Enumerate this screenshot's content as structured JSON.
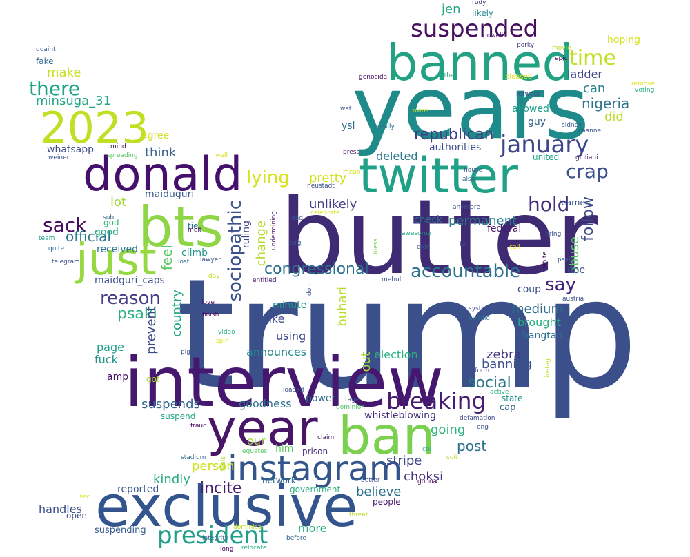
{
  "words": [
    {
      "text": "trump",
      "color": "#3b4f8a"
    },
    {
      "text": "butter",
      "color": "#3e2b73"
    },
    {
      "text": "years",
      "color": "#1f8a8a"
    },
    {
      "text": "interview",
      "color": "#45176e"
    },
    {
      "text": "exclusive",
      "color": "#33548c"
    },
    {
      "text": "banned",
      "color": "#23a183"
    },
    {
      "text": "twitter",
      "color": "#1fa188"
    },
    {
      "text": "donald",
      "color": "#45106c"
    },
    {
      "text": "bts",
      "color": "#8ed645"
    },
    {
      "text": "just",
      "color": "#95d840"
    },
    {
      "text": "ban",
      "color": "#7bd04f"
    },
    {
      "text": "year",
      "color": "#481567"
    },
    {
      "text": "instagram",
      "color": "#33558c"
    },
    {
      "text": "2023",
      "color": "#c0df25"
    },
    {
      "text": "suspended",
      "color": "#46105f"
    },
    {
      "text": "january",
      "color": "#3f4788"
    },
    {
      "text": "president",
      "color": "#1f9e89"
    },
    {
      "text": "breaking",
      "color": "#481d6f"
    },
    {
      "text": "accountable",
      "color": "#2c718e"
    },
    {
      "text": "sociopathic",
      "color": "#3b528b"
    },
    {
      "text": "time",
      "color": "#c2df23"
    },
    {
      "text": "crap",
      "color": "#3b528b"
    },
    {
      "text": "hold",
      "color": "#46307e"
    },
    {
      "text": "say",
      "color": "#45207a"
    },
    {
      "text": "reason",
      "color": "#433e85"
    },
    {
      "text": "sack",
      "color": "#470d60"
    },
    {
      "text": "congressional",
      "color": "#2d708e"
    },
    {
      "text": "republican",
      "color": "#433e85"
    },
    {
      "text": "lying",
      "color": "#d8e219"
    },
    {
      "text": "there",
      "color": "#20a486"
    },
    {
      "text": "follow",
      "color": "#3e4989"
    },
    {
      "text": "official",
      "color": "#2a788e"
    },
    {
      "text": "nigeria",
      "color": "#2c728e"
    },
    {
      "text": "psaki",
      "color": "#29af7f"
    },
    {
      "text": "social",
      "color": "#2a778e"
    },
    {
      "text": "post",
      "color": "#2d708e"
    },
    {
      "text": "minsuga_31",
      "color": "#23a884"
    },
    {
      "text": "make",
      "color": "#c8e020"
    },
    {
      "text": "pretty",
      "color": "#d2e21b"
    },
    {
      "text": "feel",
      "color": "#5ac864"
    },
    {
      "text": "change",
      "color": "#b2dd2d"
    },
    {
      "text": "jen",
      "color": "#22a785"
    },
    {
      "text": "suspends",
      "color": "#31668e"
    },
    {
      "text": "medium",
      "color": "#2e6d8e"
    },
    {
      "text": "permanent",
      "color": "#287d8e"
    },
    {
      "text": "unlikely",
      "color": "#424186"
    },
    {
      "text": "incite",
      "color": "#481f70"
    },
    {
      "text": "believe",
      "color": "#2c718e"
    },
    {
      "text": "stripe",
      "color": "#3f4889"
    },
    {
      "text": "chokşi",
      "color": "#46337f"
    },
    {
      "text": "zebra",
      "color": "#453581"
    },
    {
      "text": "banning",
      "color": "#3b528b"
    },
    {
      "text": "going",
      "color": "#2fb47c"
    },
    {
      "text": "can",
      "color": "#26818e"
    },
    {
      "text": "did",
      "color": "#bade28"
    },
    {
      "text": "abuse",
      "color": "#56c667"
    },
    {
      "text": "out",
      "color": "#a5db36"
    },
    {
      "text": "buhari",
      "color": "#b5de2b"
    },
    {
      "text": "lot",
      "color": "#a0da39"
    },
    {
      "text": "like",
      "color": "#3f4788"
    },
    {
      "text": "think",
      "color": "#34618d"
    },
    {
      "text": "country",
      "color": "#22a884"
    },
    {
      "text": "person",
      "color": "#cde11d"
    },
    {
      "text": "kindly",
      "color": "#26ad81"
    },
    {
      "text": "our",
      "color": "#9fda3a"
    },
    {
      "text": "more",
      "color": "#2ab07f"
    },
    {
      "text": "handles",
      "color": "#3d4e8a"
    },
    {
      "text": "reported",
      "color": "#39568c"
    },
    {
      "text": "prevent",
      "color": "#3e4989"
    },
    {
      "text": "ruling",
      "color": "#3f4788"
    },
    {
      "text": "announces",
      "color": "#23898e"
    },
    {
      "text": "election",
      "color": "#2ab07f"
    },
    {
      "text": "deleted",
      "color": "#2a788e"
    },
    {
      "text": "using",
      "color": "#3e4989"
    },
    {
      "text": "goodness",
      "color": "#2c728e"
    },
    {
      "text": "power",
      "color": "#2f6c8e"
    },
    {
      "text": "whistleblowing",
      "color": "#46307e"
    },
    {
      "text": "ladder",
      "color": "#404588"
    },
    {
      "text": "climb",
      "color": "#20928c"
    },
    {
      "text": "maiduguri",
      "color": "#38598c"
    },
    {
      "text": "maidguri_caps",
      "color": "#3b528b"
    },
    {
      "text": "page",
      "color": "#1fa088"
    },
    {
      "text": "fuck",
      "color": "#21918c"
    },
    {
      "text": "amp",
      "color": "#471164"
    },
    {
      "text": "whatsapp",
      "color": "#3d4e8a"
    },
    {
      "text": "agree",
      "color": "#d0e11c"
    },
    {
      "text": "received",
      "color": "#2c738e"
    },
    {
      "text": "minute",
      "color": "#1f968b"
    },
    {
      "text": "doe",
      "color": "#3a548c"
    },
    {
      "text": "coup",
      "color": "#3c508b"
    },
    {
      "text": "brought",
      "color": "#27ad81"
    },
    {
      "text": "bangtan",
      "color": "#2d708e"
    },
    {
      "text": "check",
      "color": "#306a8e"
    },
    {
      "text": "federal",
      "color": "#481c6e"
    },
    {
      "text": "authorities",
      "color": "#3c4f8a"
    },
    {
      "text": "guy",
      "color": "#34618d"
    },
    {
      "text": "allowed",
      "color": "#1f9f88"
    },
    {
      "text": "ysl",
      "color": "#2d718e"
    },
    {
      "text": "learned",
      "color": "#3b528b"
    },
    {
      "text": "united",
      "color": "#22a785"
    },
    {
      "text": "likely",
      "color": "#24868e"
    },
    {
      "text": "suspend",
      "color": "#22a785"
    },
    {
      "text": "suspending",
      "color": "#375a8c"
    },
    {
      "text": "state",
      "color": "#21918c"
    },
    {
      "text": "cap",
      "color": "#32658e"
    },
    {
      "text": "him",
      "color": "#5ec962"
    },
    {
      "text": "prison",
      "color": "#472c7a"
    },
    {
      "text": "government",
      "color": "#29af7f"
    },
    {
      "text": "network",
      "color": "#31688e"
    },
    {
      "text": "people",
      "color": "#481a6c"
    },
    {
      "text": "open",
      "color": "#3c4f8a"
    },
    {
      "text": "tie",
      "color": "#2e6f8e"
    },
    {
      "text": "god",
      "color": "#2fb47c"
    },
    {
      "text": "good",
      "color": "#27ad81"
    },
    {
      "text": "fake",
      "color": "#31678e"
    },
    {
      "text": "hoping",
      "color": "#d5e21a"
    },
    {
      "text": "rudy",
      "color": "#482475"
    },
    {
      "text": "powell",
      "color": "#482878"
    },
    {
      "text": "porky",
      "color": "#46327e"
    },
    {
      "text": "epic",
      "color": "#440154"
    },
    {
      "text": "movie",
      "color": "#b8de29"
    },
    {
      "text": "quaint",
      "color": "#39568c"
    },
    {
      "text": "genocidal",
      "color": "#46085c"
    },
    {
      "text": "father",
      "color": "#23a983"
    },
    {
      "text": "pleased",
      "color": "#dde318"
    },
    {
      "text": "remove",
      "color": "#dde318"
    },
    {
      "text": "voting",
      "color": "#2ab07f"
    },
    {
      "text": "retweet",
      "color": "#3e4a89"
    },
    {
      "text": "wat",
      "color": "#3b528b"
    },
    {
      "text": "owns",
      "color": "#c7e020"
    },
    {
      "text": "really",
      "color": "#2d718e"
    },
    {
      "text": "sidney",
      "color": "#38598c"
    },
    {
      "text": "channel",
      "color": "#3b528b"
    },
    {
      "text": "giuliani",
      "color": "#481b6d"
    },
    {
      "text": "mind",
      "color": "#440154"
    },
    {
      "text": "spreading",
      "color": "#5ac864"
    },
    {
      "text": "weiner",
      "color": "#3b528b"
    },
    {
      "text": "well",
      "color": "#d8e219"
    },
    {
      "text": "press",
      "color": "#481467"
    },
    {
      "text": "house",
      "color": "#3b528b"
    },
    {
      "text": "also",
      "color": "#31668e"
    },
    {
      "text": "mean",
      "color": "#cde11d"
    },
    {
      "text": "neustadt",
      "color": "#3b528b"
    },
    {
      "text": "dad",
      "color": "#3b528b"
    },
    {
      "text": "celebrate",
      "color": "#dde318"
    },
    {
      "text": "anymore",
      "color": "#3b528b"
    },
    {
      "text": "sub",
      "color": "#33638d"
    },
    {
      "text": "melt",
      "color": "#481769"
    },
    {
      "text": "team",
      "color": "#1fa088"
    },
    {
      "text": "quite",
      "color": "#33638d"
    },
    {
      "text": "telegram",
      "color": "#3b528b"
    },
    {
      "text": "lawyer",
      "color": "#3e4c8a"
    },
    {
      "text": "lost",
      "color": "#2c728e"
    },
    {
      "text": "undermining",
      "color": "#481769"
    },
    {
      "text": "isrg",
      "color": "#3b528b"
    },
    {
      "text": "bless",
      "color": "#7ad151"
    },
    {
      "text": "awesome",
      "color": "#22a785"
    },
    {
      "text": "didn",
      "color": "#39568c"
    },
    {
      "text": "fal",
      "color": "#3b528b"
    },
    {
      "text": "call",
      "color": "#fde725"
    },
    {
      "text": "bring",
      "color": "#3b528b"
    },
    {
      "text": "white",
      "color": "#440154"
    },
    {
      "text": "psak",
      "color": "#3b528b"
    },
    {
      "text": "day",
      "color": "#c2df23"
    },
    {
      "text": "entitled",
      "color": "#481668"
    },
    {
      "text": "mehul",
      "color": "#3b528b"
    },
    {
      "text": "austria",
      "color": "#3b528b"
    },
    {
      "text": "don",
      "color": "#3b528b"
    },
    {
      "text": "lie",
      "color": "#3b528b"
    },
    {
      "text": "system",
      "color": "#3b528b"
    },
    {
      "text": "bundle",
      "color": "#2e6e8e"
    },
    {
      "text": "love",
      "color": "#470e61"
    },
    {
      "text": "finish",
      "color": "#440154"
    },
    {
      "text": "video",
      "color": "#2ab07f"
    },
    {
      "text": "spin",
      "color": "#dde318"
    },
    {
      "text": "piggin",
      "color": "#3b528b"
    },
    {
      "text": "got",
      "color": "#addc30"
    },
    {
      "text": "instag",
      "color": "#c2df23"
    },
    {
      "text": "inform",
      "color": "#3b528b"
    },
    {
      "text": "active",
      "color": "#2ab07f"
    },
    {
      "text": "loaded",
      "color": "#3b528b"
    },
    {
      "text": "rage",
      "color": "#3b528b"
    },
    {
      "text": "dominion",
      "color": "#4ec36b"
    },
    {
      "text": "defamation",
      "color": "#3e4a89"
    },
    {
      "text": "eng",
      "color": "#3b528b"
    },
    {
      "text": "fraud",
      "color": "#440154"
    },
    {
      "text": "claim",
      "color": "#481a6c"
    },
    {
      "text": "equates",
      "color": "#5ec962"
    },
    {
      "text": "cbi",
      "color": "#2ab07f"
    },
    {
      "text": "suit",
      "color": "#b8de29"
    },
    {
      "text": "stadium",
      "color": "#2e6e8e"
    },
    {
      "text": "feels",
      "color": "#addc30"
    },
    {
      "text": "better",
      "color": "#3b528b"
    },
    {
      "text": "gonna",
      "color": "#440154"
    },
    {
      "text": "sec",
      "color": "#dde318"
    },
    {
      "text": "threat",
      "color": "#b8de29"
    },
    {
      "text": "dominica",
      "color": "#bade28"
    },
    {
      "text": "integrity",
      "color": "#33638d"
    },
    {
      "text": "before",
      "color": "#33638d"
    },
    {
      "text": "long",
      "color": "#440154"
    },
    {
      "text": "relocate",
      "color": "#2ab07f"
    }
  ]
}
